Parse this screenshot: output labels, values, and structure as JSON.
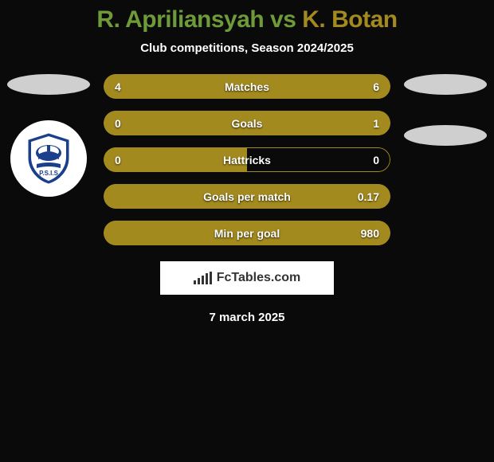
{
  "title": {
    "player1": "R. Apriliansyah",
    "vs": " vs ",
    "player2": "K. Botan",
    "color1": "#6f9a3a",
    "color2": "#a38a1f"
  },
  "subtitle": "Club competitions, Season 2024/2025",
  "colors": {
    "left_fill": "#a38a1f",
    "right_fill": "#a38a1f",
    "border": "#a38a1f",
    "background": "#0a0a0a",
    "ellipse": "#cfcfcf",
    "text_shadow": "rgba(0,0,0,0.8)"
  },
  "stats": [
    {
      "label": "Matches",
      "left_val": "4",
      "right_val": "6",
      "left_pct": 40,
      "right_pct": 60
    },
    {
      "label": "Goals",
      "left_val": "0",
      "right_val": "1",
      "left_pct": 5,
      "right_pct": 95
    },
    {
      "label": "Hattricks",
      "left_val": "0",
      "right_val": "0",
      "left_pct": 50,
      "right_pct": 0
    },
    {
      "label": "Goals per match",
      "left_val": "",
      "right_val": "0.17",
      "left_pct": 0,
      "right_pct": 100
    },
    {
      "label": "Min per goal",
      "left_val": "",
      "right_val": "980",
      "left_pct": 0,
      "right_pct": 100
    }
  ],
  "brand": "FcTables.com",
  "date": "7 march 2025",
  "badge": {
    "label": "P.S.I.S",
    "primary": "#1a3f8c",
    "secondary": "#fff"
  }
}
